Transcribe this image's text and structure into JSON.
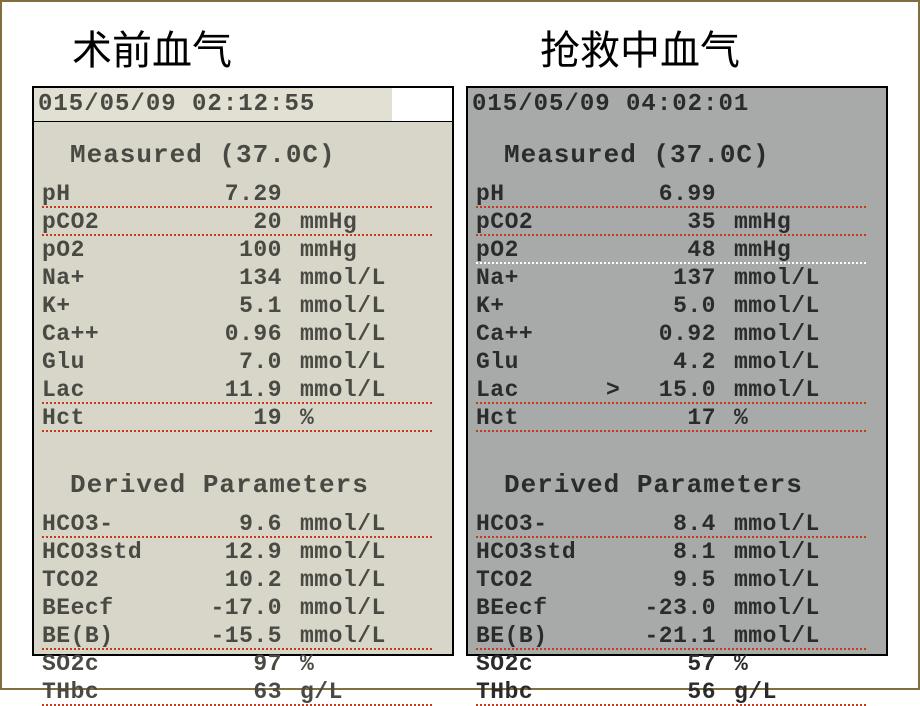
{
  "titles": {
    "left": "术前血气",
    "right": "抢救中血气"
  },
  "left": {
    "timestamp": "015/05/09  02:12:55",
    "measured_title": "Measured (37.0C)",
    "derived_title": "Derived Parameters",
    "measured": [
      {
        "label": "pH",
        "pre": "",
        "val": "7.29",
        "unit": "",
        "u": "red"
      },
      {
        "label": "pCO2",
        "pre": "",
        "val": "20",
        "unit": "mmHg",
        "u": "red"
      },
      {
        "label": "pO2",
        "pre": "",
        "val": "100",
        "unit": "mmHg",
        "u": ""
      },
      {
        "label": "Na+",
        "pre": "",
        "val": "134",
        "unit": "mmol/L",
        "u": ""
      },
      {
        "label": "K+",
        "pre": "",
        "val": "5.1",
        "unit": "mmol/L",
        "u": ""
      },
      {
        "label": "Ca++",
        "pre": "",
        "val": "0.96",
        "unit": "mmol/L",
        "u": ""
      },
      {
        "label": "Glu",
        "pre": "",
        "val": "7.0",
        "unit": "mmol/L",
        "u": ""
      },
      {
        "label": "Lac",
        "pre": "",
        "val": "11.9",
        "unit": "mmol/L",
        "u": "red"
      },
      {
        "label": "Hct",
        "pre": "",
        "val": "19",
        "unit": "%",
        "u": "red"
      }
    ],
    "derived": [
      {
        "label": "HCO3-",
        "pre": "",
        "val": "9.6",
        "unit": "mmol/L",
        "u": "red"
      },
      {
        "label": "HCO3std",
        "pre": "",
        "val": "12.9",
        "unit": "mmol/L",
        "u": ""
      },
      {
        "label": "TCO2",
        "pre": "",
        "val": "10.2",
        "unit": "mmol/L",
        "u": ""
      },
      {
        "label": "BEecf",
        "pre": "",
        "val": "-17.0",
        "unit": "mmol/L",
        "u": ""
      },
      {
        "label": "BE(B)",
        "pre": "",
        "val": "-15.5",
        "unit": "mmol/L",
        "u": "red"
      },
      {
        "label": "SO2c",
        "pre": "",
        "val": "97",
        "unit": "%",
        "u": ""
      },
      {
        "label": "THbc",
        "pre": "",
        "val": "63",
        "unit": "g/L",
        "u": "red"
      }
    ]
  },
  "right": {
    "timestamp": "015/05/09  04:02:01",
    "measured_title": "Measured (37.0C)",
    "derived_title": "Derived Parameters",
    "measured": [
      {
        "label": "pH",
        "pre": "",
        "val": "6.99",
        "unit": "",
        "u": "red"
      },
      {
        "label": "pCO2",
        "pre": "",
        "val": "35",
        "unit": "mmHg",
        "u": "red"
      },
      {
        "label": "pO2",
        "pre": "",
        "val": "48",
        "unit": "mmHg",
        "u": "white"
      },
      {
        "label": "Na+",
        "pre": "",
        "val": "137",
        "unit": "mmol/L",
        "u": ""
      },
      {
        "label": "K+",
        "pre": "",
        "val": "5.0",
        "unit": "mmol/L",
        "u": ""
      },
      {
        "label": "Ca++",
        "pre": "",
        "val": "0.92",
        "unit": "mmol/L",
        "u": ""
      },
      {
        "label": "Glu",
        "pre": "",
        "val": "4.2",
        "unit": "mmol/L",
        "u": ""
      },
      {
        "label": "Lac",
        "pre": ">",
        "val": "15.0",
        "unit": "mmol/L",
        "u": "red"
      },
      {
        "label": "Hct",
        "pre": "",
        "val": "17",
        "unit": "%",
        "u": "red"
      }
    ],
    "derived": [
      {
        "label": "HCO3-",
        "pre": "",
        "val": "8.4",
        "unit": "mmol/L",
        "u": "red"
      },
      {
        "label": "HCO3std",
        "pre": "",
        "val": "8.1",
        "unit": "mmol/L",
        "u": ""
      },
      {
        "label": "TCO2",
        "pre": "",
        "val": "9.5",
        "unit": "mmol/L",
        "u": ""
      },
      {
        "label": "BEecf",
        "pre": "",
        "val": "-23.0",
        "unit": "mmol/L",
        "u": ""
      },
      {
        "label": "BE(B)",
        "pre": "",
        "val": "-21.1",
        "unit": "mmol/L",
        "u": "red"
      },
      {
        "label": "SO2c",
        "pre": "",
        "val": "57",
        "unit": "%",
        "u": "white"
      },
      {
        "label": "THbc",
        "pre": "",
        "val": "56",
        "unit": "g/L",
        "u": "red"
      }
    ]
  }
}
